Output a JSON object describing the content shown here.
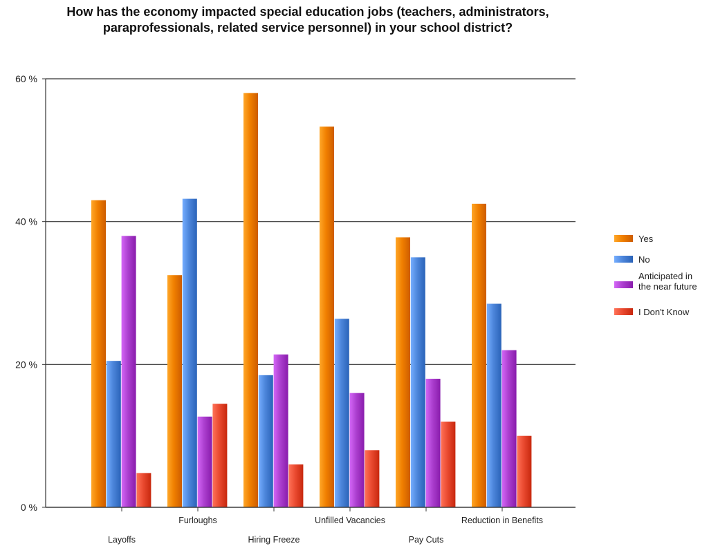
{
  "chart_data": {
    "type": "bar",
    "title": "How has the economy impacted special education jobs (teachers, administrators, paraprofessionals, related service personnel) in your school district?",
    "xlabel": "",
    "ylabel": "",
    "ylim": [
      0,
      60
    ],
    "yticks": [
      0,
      20,
      40,
      60
    ],
    "ytick_labels": [
      "0 %",
      "20 %",
      "40 %",
      "60 %"
    ],
    "grid": true,
    "legend_position": "right",
    "categories": [
      "Layoffs",
      "Furloughs",
      "Hiring Freeze",
      "Unfilled Vacancies",
      "Pay Cuts",
      "Reduction in Benefits"
    ],
    "series": [
      {
        "name": "Yes",
        "color": "#f07f00",
        "values": [
          43,
          32.5,
          58,
          53.3,
          37.8,
          42.5
        ]
      },
      {
        "name": "No",
        "color": "#4d86db",
        "values": [
          20.5,
          43.2,
          18.5,
          26.4,
          35,
          28.5
        ]
      },
      {
        "name": "Anticipated in the near future",
        "color": "#ac3fcf",
        "values": [
          38,
          12.7,
          21.4,
          16,
          18,
          22
        ]
      },
      {
        "name": "I Don't Know",
        "color": "#ea4a30",
        "values": [
          4.8,
          14.5,
          6,
          8,
          12,
          10
        ]
      }
    ]
  }
}
